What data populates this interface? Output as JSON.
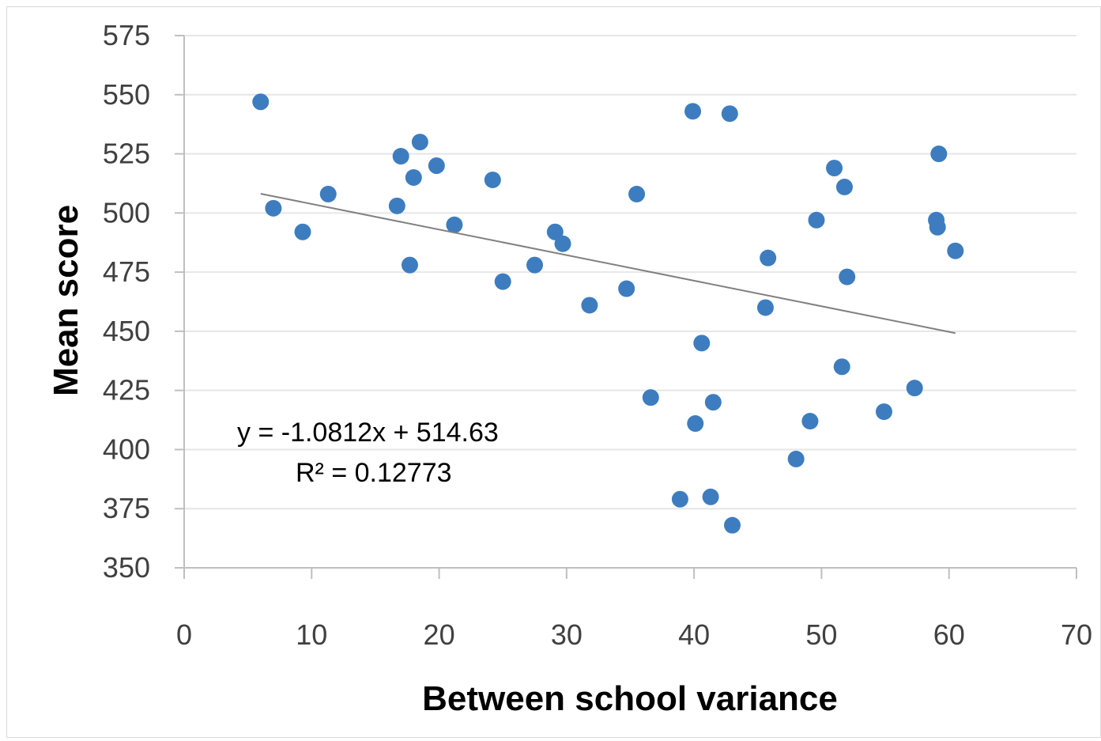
{
  "chart_data": {
    "type": "scatter",
    "title": "",
    "xlabel": "Between school variance",
    "ylabel": "Mean score",
    "xlim": [
      0,
      70
    ],
    "ylim": [
      350,
      575
    ],
    "x_ticks": [
      "0",
      "10",
      "20",
      "30",
      "40",
      "50",
      "60",
      "70"
    ],
    "y_ticks": [
      "350",
      "375",
      "400",
      "425",
      "450",
      "475",
      "500",
      "525",
      "550",
      "575"
    ],
    "grid": "horizontal",
    "legend": "none",
    "colors": {
      "marker": "#3d7dbf",
      "trendline": "#808080",
      "grid": "#e6e6e6",
      "axis": "#bfbfbf"
    },
    "series": [
      {
        "x": [
          6,
          7,
          9.3,
          11.3,
          16.7,
          17,
          17.7,
          18,
          18.5,
          19.8,
          21.2,
          24.2,
          25,
          27.5,
          29.1,
          29.7,
          31.8,
          34.7,
          35.5,
          36.6,
          38.9,
          39.9,
          40.1,
          40.6,
          41.3,
          41.5,
          42.8,
          43,
          45.6,
          45.8,
          48,
          49.1,
          49.6,
          51,
          51.6,
          51.8,
          52,
          54.9,
          57.3,
          59,
          59.1,
          59.2,
          60.5
        ],
        "y": [
          547,
          502,
          492,
          508,
          503,
          524,
          478,
          515,
          530,
          520,
          495,
          514,
          471,
          478,
          492,
          487,
          461,
          468,
          508,
          422,
          379,
          543,
          411,
          445,
          380,
          420,
          542,
          368,
          460,
          481,
          396,
          412,
          497,
          519,
          435,
          511,
          473,
          416,
          426,
          497,
          494,
          525,
          484
        ]
      }
    ],
    "trendline": {
      "x": [
        6,
        60.5
      ],
      "y": [
        508.14,
        449.22
      ]
    },
    "annotations": [
      "y = -1.0812x + 514.63",
      "R² = 0.12773"
    ]
  }
}
